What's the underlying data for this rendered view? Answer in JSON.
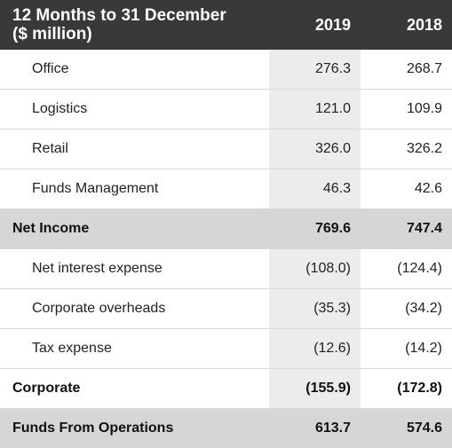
{
  "header": {
    "label_line1": "12 Months to 31 December",
    "label_line2": "($ million)",
    "col_2019": "2019",
    "col_2018": "2018"
  },
  "rows": [
    {
      "label": "Office",
      "v2019": "276.3",
      "v2018": "268.7"
    },
    {
      "label": "Logistics",
      "v2019": "121.0",
      "v2018": "109.9"
    },
    {
      "label": "Retail",
      "v2019": "326.0",
      "v2018": "326.2"
    },
    {
      "label": "Funds Management",
      "v2019": "46.3",
      "v2018": "42.6"
    },
    {
      "label": "Net Income",
      "v2019": "769.6",
      "v2018": "747.4"
    },
    {
      "label": "Net interest expense",
      "v2019": "(108.0)",
      "v2018": "(124.4)"
    },
    {
      "label": "Corporate overheads",
      "v2019": "(35.3)",
      "v2018": "(34.2)"
    },
    {
      "label": "Tax expense",
      "v2019": "(12.6)",
      "v2018": "(14.2)"
    },
    {
      "label": "Corporate",
      "v2019": "(155.9)",
      "v2018": "(172.8)"
    },
    {
      "label": "Funds From Operations",
      "v2019": "613.7",
      "v2018": "574.6"
    }
  ]
}
